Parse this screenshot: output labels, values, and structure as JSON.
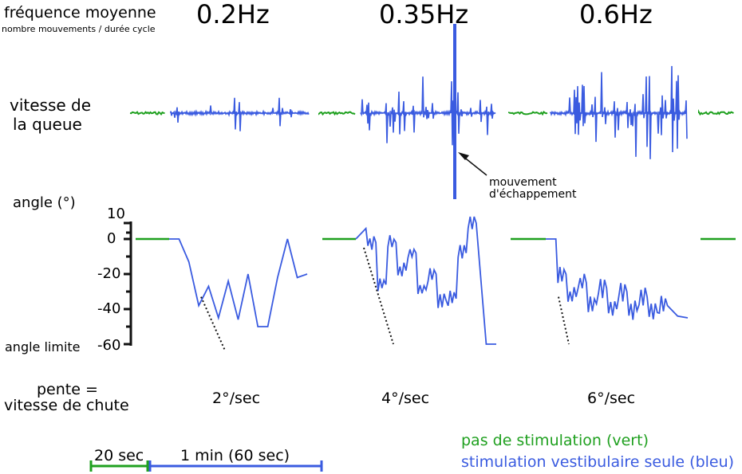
{
  "header": {
    "title_line1": "fréquence moyenne",
    "title_line2": "nombre mouvements / durée cycle",
    "freq_1": "0.2Hz",
    "freq_2": "0.35Hz",
    "freq_3": "0.6Hz"
  },
  "rows": {
    "tail_speed_l1": "vitesse de",
    "tail_speed_l2": "la queue",
    "angle_label": "angle (°)",
    "angle_limit": "angle limite",
    "slope_l1": "pente =",
    "slope_l2": "vitesse de chute"
  },
  "annotation": {
    "escape_l1": "mouvement",
    "escape_l2": "d'échappement"
  },
  "slopes": [
    "2°/sec",
    "4°/sec",
    "6°/sec"
  ],
  "timescale": {
    "green": "20 sec",
    "blue": "1 min (60 sec)"
  },
  "legend": {
    "green": "pas de stimulation (vert)",
    "blue": "stimulation vestibulaire seule (bleu)"
  },
  "colors": {
    "green": "#1fa01f",
    "blue": "#3a5be0",
    "black": "#111111"
  },
  "chart_data": {
    "type": "line",
    "y_axis_ticks": [
      "10",
      "0",
      "-20",
      "-40",
      "-60"
    ],
    "ylim": [
      -60,
      10
    ],
    "panels": [
      {
        "frequency": "0.2Hz",
        "slope": "2°/sec",
        "angle_trace": [
          0,
          0,
          -13,
          -38,
          -27,
          -45,
          -24,
          -46,
          -20,
          -50,
          -50,
          -22,
          0,
          -22,
          -20
        ]
      },
      {
        "frequency": "0.35Hz",
        "slope": "4°/sec",
        "angle_trace": [
          0,
          6,
          -2,
          -26,
          -2,
          -18,
          -8,
          -29,
          -20,
          -35,
          -34,
          -8,
          9,
          -60,
          -60
        ]
      },
      {
        "frequency": "0.6Hz",
        "slope": "6°/sec",
        "angle_trace": [
          0,
          0,
          -20,
          -33,
          -25,
          -37,
          -28,
          -40,
          -30,
          -41,
          -33,
          -42,
          -38,
          -44,
          -45
        ]
      }
    ]
  }
}
